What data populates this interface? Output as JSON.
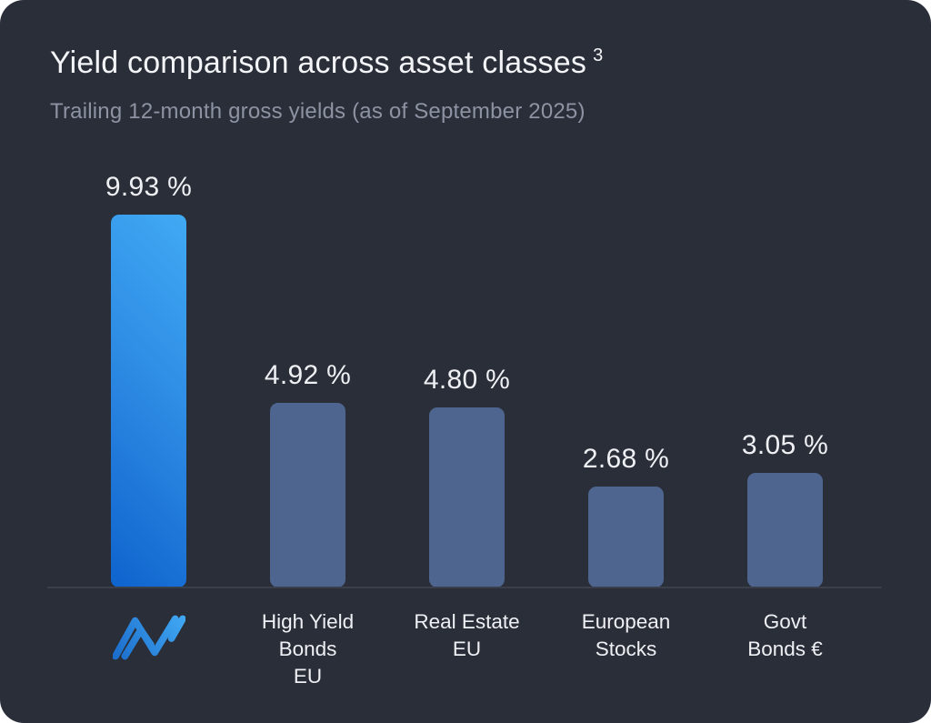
{
  "page": {
    "outer_background": "#ffffff",
    "card_background": "#2a2e38"
  },
  "header": {
    "title": "Yield comparison across asset classes",
    "title_superscript": "3",
    "subtitle": "Trailing 12-month gross yields (as of September 2025)"
  },
  "chart_data": {
    "type": "bar",
    "title": "Yield comparison across asset classes",
    "subtitle": "Trailing 12-month gross yields (as of September 2025)",
    "categories": [
      "",
      "High Yield\nBonds\nEU",
      "Real Estate\nEU",
      "European\nStocks",
      "Govt\nBonds €"
    ],
    "values": [
      9.93,
      4.92,
      4.8,
      2.68,
      3.05
    ],
    "value_labels": [
      "9.93 %",
      "4.92 %",
      "4.80 %",
      "2.68 %",
      "3.05 %"
    ],
    "first_category_icon": "brand-logo-icon",
    "highlight_index": 0,
    "unit": "%",
    "ylim": [
      0,
      10.5
    ],
    "grid": false,
    "legend": false,
    "xlabel": "",
    "ylabel": "",
    "style": {
      "bar_color": "#4e6590",
      "highlight_gradient": [
        "#0f63cd",
        "#41aaf4"
      ],
      "axis_line_color": "#3a3f4b",
      "value_text_color": "#eef0f4",
      "category_text_color": "#eef0f4",
      "title_color": "#f3f4f7",
      "subtitle_color": "#8d93a3",
      "pixels_per_unit": 41.3
    }
  }
}
